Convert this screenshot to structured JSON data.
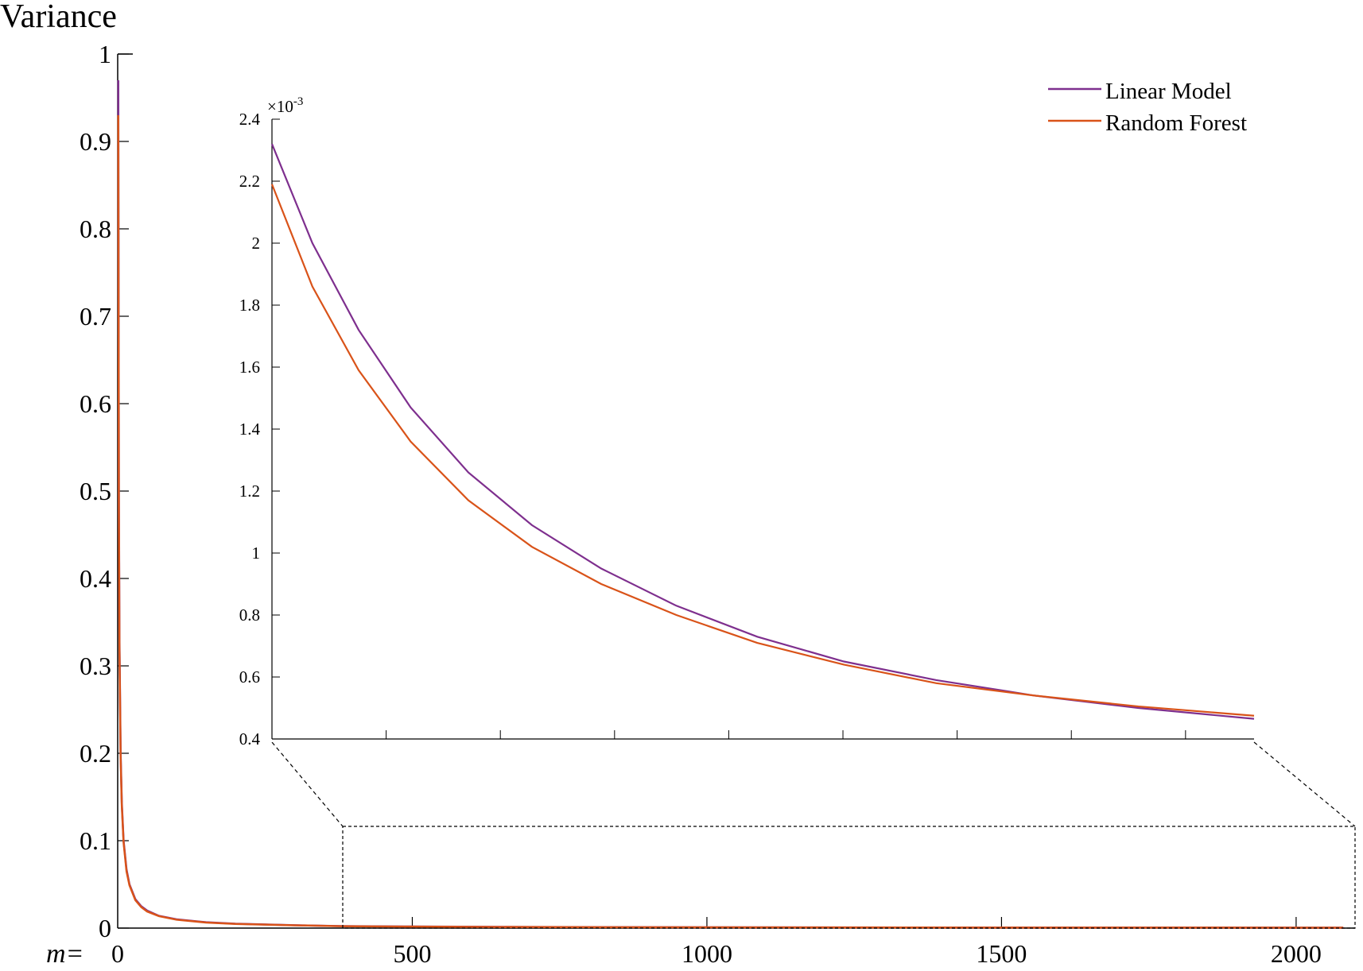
{
  "chart_data": [
    {
      "type": "line",
      "ylabel": "Variance",
      "x_prefix": "m=",
      "xlim": [
        0,
        2100
      ],
      "ylim": [
        0,
        1
      ],
      "x_ticks": [
        0,
        500,
        1000,
        1500,
        2000
      ],
      "y_ticks": [
        0,
        0.1,
        0.2,
        0.3,
        0.4,
        0.5,
        0.6,
        0.7,
        0.8,
        0.9,
        1
      ],
      "grid": false,
      "legend_position": "top-right",
      "series": [
        {
          "name": "Linear Model",
          "color": "#7E2F8E",
          "x": [
            1,
            2,
            3,
            5,
            7,
            10,
            15,
            20,
            30,
            40,
            50,
            70,
            100,
            150,
            200,
            300,
            380,
            500,
            700,
            1000,
            1500,
            2080
          ],
          "y": [
            0.97,
            0.5,
            0.33,
            0.2,
            0.143,
            0.1,
            0.067,
            0.05,
            0.033,
            0.025,
            0.02,
            0.014,
            0.01,
            0.0067,
            0.005,
            0.0033,
            0.0023,
            0.0018,
            0.0013,
            0.0009,
            0.0006,
            0.00046
          ]
        },
        {
          "name": "Random Forest",
          "color": "#D95319",
          "x": [
            1,
            2,
            3,
            5,
            7,
            10,
            15,
            20,
            30,
            40,
            50,
            70,
            100,
            150,
            200,
            300,
            380,
            500,
            700,
            1000,
            1500,
            2080
          ],
          "y": [
            0.93,
            0.48,
            0.32,
            0.195,
            0.14,
            0.098,
            0.065,
            0.049,
            0.032,
            0.024,
            0.019,
            0.0137,
            0.0096,
            0.0064,
            0.0048,
            0.0032,
            0.0022,
            0.0017,
            0.0012,
            0.00088,
            0.0006,
            0.00047
          ]
        }
      ]
    },
    {
      "type": "line",
      "role": "inset",
      "exponent_label": "×10",
      "exponent_power": "-3",
      "xlim": [
        380,
        2080
      ],
      "ylim": [
        0.4,
        2.4
      ],
      "y_ticks": [
        0.4,
        0.6,
        0.8,
        1,
        1.2,
        1.4,
        1.6,
        1.8,
        2,
        2.2,
        2.4
      ],
      "x_tick_count": 8,
      "grid": false,
      "series": [
        {
          "name": "Linear Model",
          "color": "#7E2F8E",
          "x": [
            380,
            450,
            530,
            620,
            720,
            830,
            950,
            1080,
            1220,
            1370,
            1530,
            1700,
            1880,
            2080
          ],
          "y": [
            2.32,
            2.0,
            1.72,
            1.47,
            1.26,
            1.09,
            0.95,
            0.83,
            0.73,
            0.65,
            0.59,
            0.54,
            0.5,
            0.465
          ]
        },
        {
          "name": "Random Forest",
          "color": "#D95319",
          "x": [
            380,
            450,
            530,
            620,
            720,
            830,
            950,
            1080,
            1220,
            1370,
            1530,
            1700,
            1880,
            2080
          ],
          "y": [
            2.19,
            1.86,
            1.59,
            1.36,
            1.17,
            1.02,
            0.9,
            0.8,
            0.71,
            0.64,
            0.58,
            0.54,
            0.505,
            0.475
          ]
        }
      ]
    }
  ]
}
